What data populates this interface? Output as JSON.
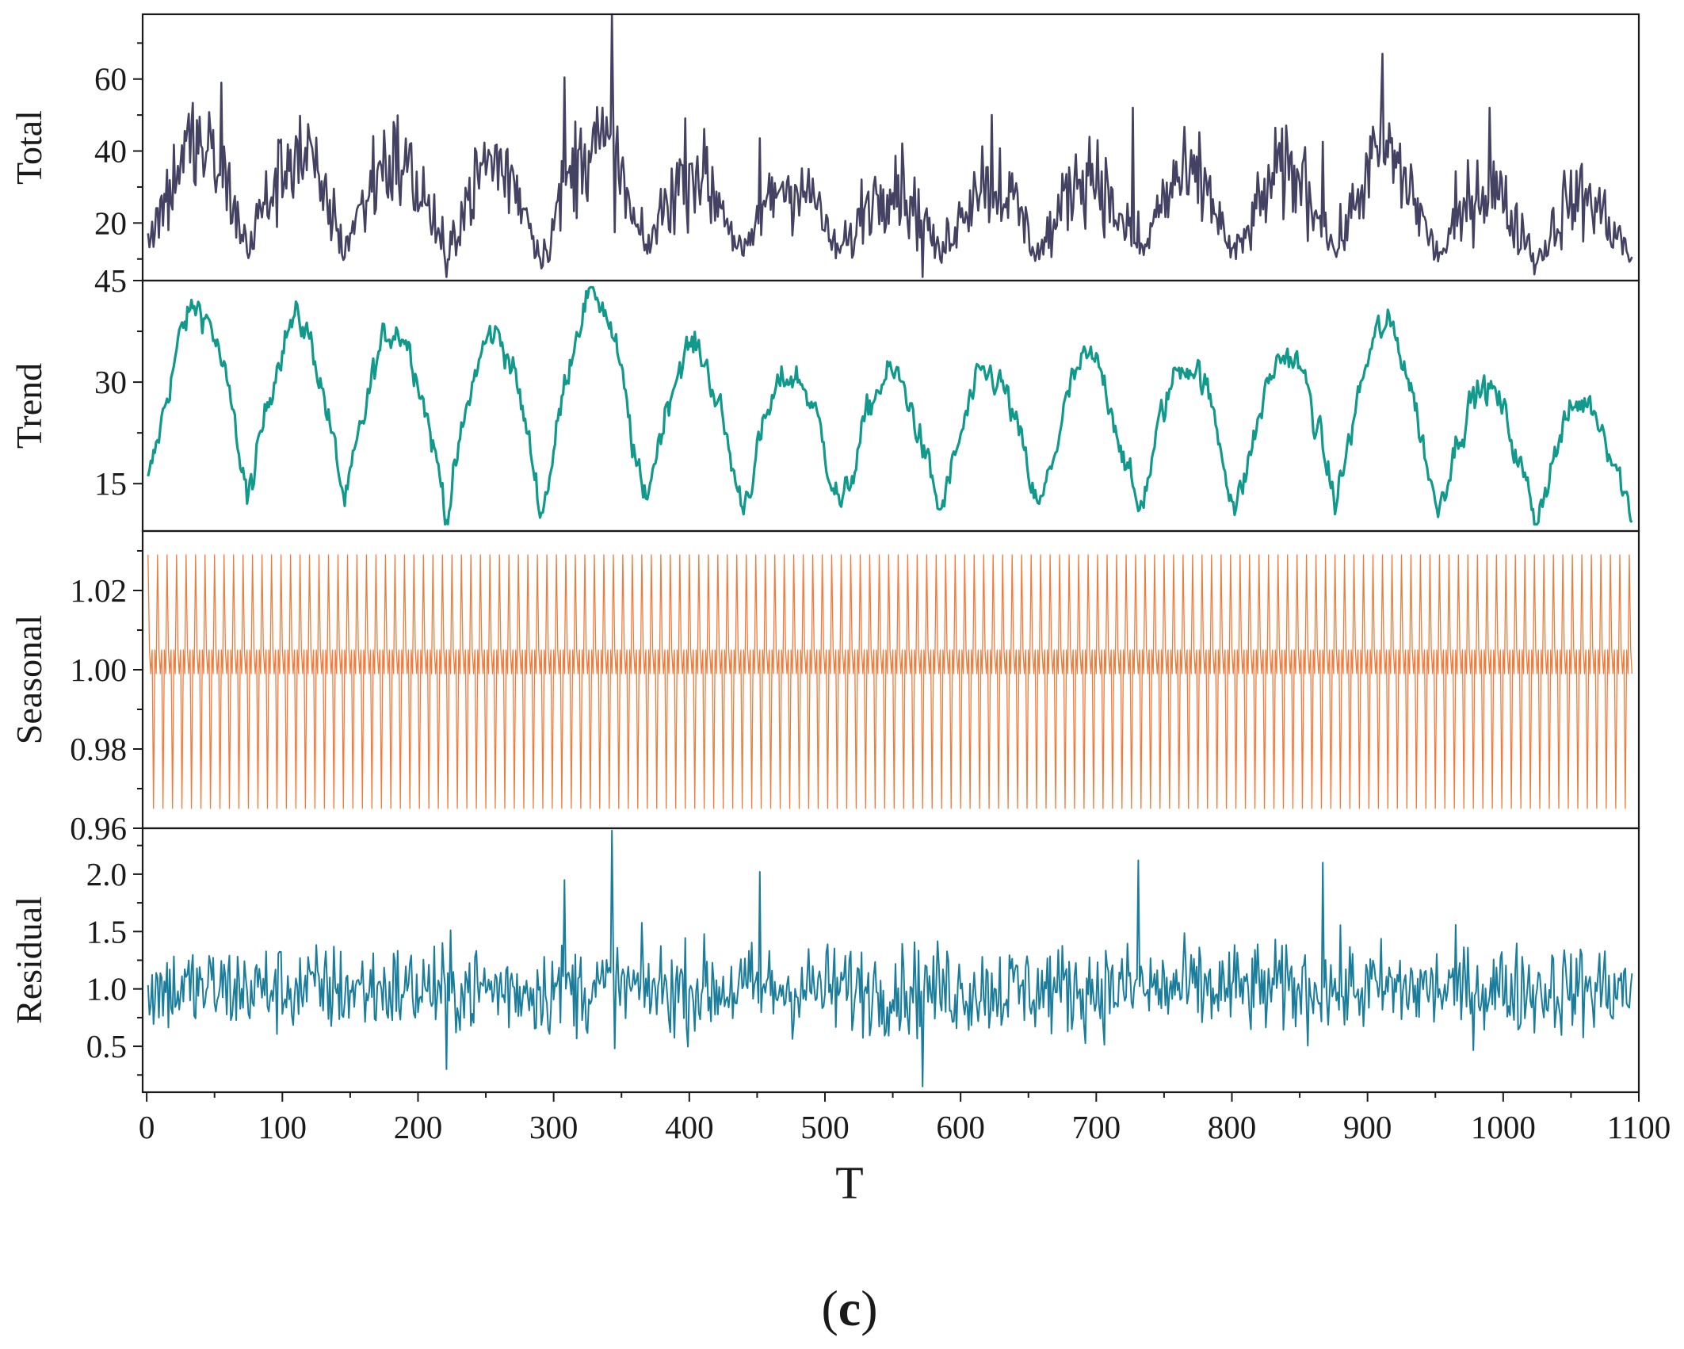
{
  "figure": {
    "caption_open": "(",
    "caption_letter": "c",
    "caption_close": ")"
  },
  "chart_data": {
    "type": "line",
    "title": "",
    "xlabel": "T",
    "xlim": [
      -3,
      1100
    ],
    "xticks": [
      0,
      100,
      200,
      300,
      400,
      500,
      600,
      700,
      800,
      900,
      1000,
      1100
    ],
    "x_range": [
      1,
      1095
    ],
    "n_points": 1095,
    "panels": [
      {
        "name": "Total",
        "ylabel": "Total",
        "color": "#444263",
        "stroke_width": 2.6,
        "ylim": [
          4,
          78
        ],
        "yticks": [
          20,
          40,
          60
        ],
        "value_range": [
          5,
          78
        ],
        "cycle_period": 73,
        "cycle_peaks": [
          45,
          42,
          42,
          38,
          45,
          33,
          28,
          28,
          27,
          28,
          27,
          30,
          33,
          27,
          24
        ],
        "cycle_troughs": [
          10,
          10,
          6,
          10,
          9,
          7,
          8,
          8,
          7,
          7,
          8,
          8,
          8,
          8,
          8
        ],
        "spikes": [
          [
            55,
            59
          ],
          [
            343,
            78
          ],
          [
            911,
            67
          ],
          [
            990,
            52
          ],
          [
            727,
            52
          ],
          [
            623,
            50
          ]
        ]
      },
      {
        "name": "Trend",
        "ylabel": "Trend",
        "color": "#11998C",
        "stroke_width": 3.2,
        "ylim": [
          8,
          45
        ],
        "yticks": [
          15,
          30,
          45
        ],
        "value_range": [
          9,
          44
        ],
        "cycle_period": 73,
        "cycle_peaks": [
          41,
          39,
          38,
          37,
          43,
          35,
          31,
          31,
          31,
          33,
          33,
          34,
          38,
          29,
          27
        ],
        "cycle_troughs": [
          15,
          12,
          13,
          10,
          13,
          12,
          12,
          11,
          11,
          11,
          11,
          12,
          13,
          11,
          10
        ]
      },
      {
        "name": "Seasonal",
        "ylabel": "Seasonal",
        "color": "#F07B3A",
        "stroke_width": 1.3,
        "ylim": [
          0.96,
          1.035
        ],
        "yticks": [
          0.96,
          0.98,
          1.0,
          1.02
        ],
        "ytick_labels": [
          "0.96",
          "0.98",
          "1.00",
          "1.02"
        ],
        "period": 7,
        "weekly_factors": [
          1.029,
          1.005,
          0.999,
          1.005,
          0.965,
          1.005,
          0.999
        ]
      },
      {
        "name": "Residual",
        "ylabel": "Residual",
        "color": "#1A7D9C",
        "stroke_width": 2.0,
        "ylim": [
          0.1,
          2.4
        ],
        "yticks": [
          0.5,
          1.0,
          1.5,
          2.0
        ],
        "ytick_labels": [
          "0.5",
          "1.0",
          "1.5",
          "2.0"
        ],
        "value_range": [
          0.15,
          2.38
        ],
        "mean": 1.0,
        "spikes": [
          [
            343,
            2.38
          ],
          [
            572,
            0.15
          ],
          [
            731,
            2.12
          ],
          [
            867,
            2.1
          ],
          [
            452,
            2.02
          ],
          [
            308,
            1.95
          ],
          [
            221,
            0.3
          ]
        ]
      }
    ]
  }
}
